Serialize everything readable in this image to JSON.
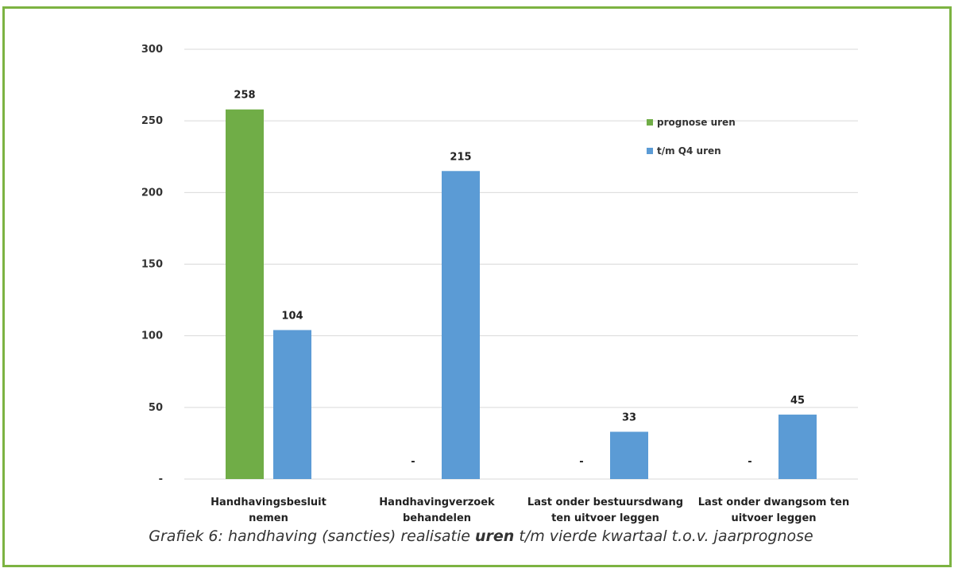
{
  "colors": {
    "border": "#7cb342",
    "series_green": "#70ad47",
    "series_blue": "#5b9bd5",
    "grid": "#d9d9d9"
  },
  "caption": {
    "prefix": "Grafiek 6: handhaving (sancties) realisatie ",
    "bold": "uren",
    "suffix": " t/m vierde kwartaal t.o.v. jaarprognose"
  },
  "chart_data": {
    "type": "bar",
    "title": "",
    "xlabel": "",
    "ylabel": "",
    "ylim": [
      0,
      300
    ],
    "yticks": [
      0,
      50,
      100,
      150,
      200,
      250,
      300
    ],
    "ytick_labels": [
      "-",
      "50",
      "100",
      "150",
      "200",
      "250",
      "300"
    ],
    "grid": true,
    "legend_position": "top-right",
    "categories": [
      [
        "Handhavingsbesluit",
        "nemen"
      ],
      [
        "Handhavingverzoek",
        "behandelen"
      ],
      [
        "Last onder bestuursdwang",
        "ten uitvoer leggen"
      ],
      [
        "Last onder dwangsom ten",
        "uitvoer leggen"
      ]
    ],
    "series": [
      {
        "name": "prognose uren",
        "color": "#70ad47",
        "values": [
          258,
          0,
          0,
          0
        ],
        "labels": [
          "258",
          "-",
          "-",
          "-"
        ]
      },
      {
        "name": "t/m Q4 uren",
        "color": "#5b9bd5",
        "values": [
          104,
          215,
          33,
          45
        ],
        "labels": [
          "104",
          "215",
          "33",
          "45"
        ]
      }
    ]
  }
}
